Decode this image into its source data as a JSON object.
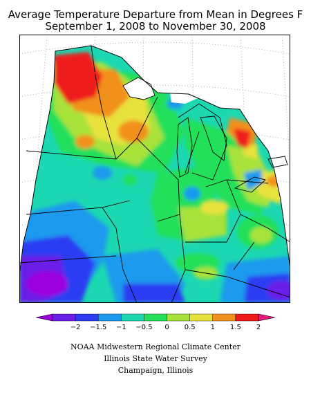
{
  "title": {
    "line1": "Average Temperature Departure from Mean in Degrees F",
    "line2": "September 1, 2008 to November 30, 2008"
  },
  "legend": {
    "tick_labels": [
      "−2",
      "−1.5",
      "−1",
      "−0.5",
      "0",
      "0.5",
      "1",
      "1.5",
      "2"
    ],
    "colors": [
      "#9b00dc",
      "#6b1ee8",
      "#2c3cf2",
      "#1b9aee",
      "#1cd8b2",
      "#22e05a",
      "#a8e23a",
      "#e8e23c",
      "#f2901e",
      "#ee1a1a",
      "#e8187a"
    ]
  },
  "map_colors": {
    "background": "#ffffff",
    "state_lines": "#000000",
    "graticule": "#9a9a9a"
  },
  "credits": {
    "line1": "NOAA Midwestern Regional Climate Center",
    "line2": "Illinois State Water Survey",
    "line3": "Champaign, Illinois"
  }
}
